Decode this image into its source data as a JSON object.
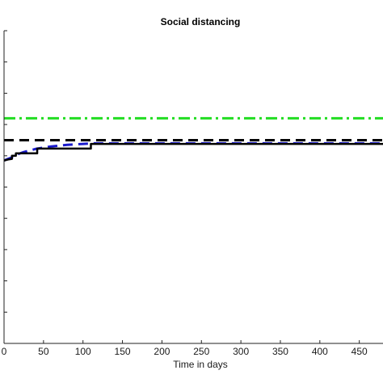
{
  "chart_data": {
    "type": "line",
    "title": "Social distancing",
    "xlabel": "Time in days",
    "ylabel": "",
    "xlim": [
      0,
      480
    ],
    "ylim": [
      0,
      1
    ],
    "x_ticks": [
      0,
      50,
      100,
      150,
      200,
      250,
      300,
      350,
      400,
      450
    ],
    "x_tick_labels": [
      "0",
      "50",
      "100",
      "150",
      "200",
      "250",
      "300",
      "350",
      "400",
      "450"
    ],
    "y_ticks": [
      0,
      0.1,
      0.2,
      0.3,
      0.4,
      0.5,
      0.6,
      0.7,
      0.8,
      0.9,
      1.0
    ],
    "grid": false,
    "legend": "none",
    "series": [
      {
        "style": "dash-dot",
        "color": "#22dd22",
        "x": [
          0,
          480
        ],
        "y": [
          0.72,
          0.72
        ]
      },
      {
        "style": "dashed",
        "color": "#000000",
        "x": [
          0,
          480
        ],
        "y": [
          0.65,
          0.65
        ]
      },
      {
        "style": "dashed",
        "color": "#1a1acc",
        "x": [
          0,
          5,
          10,
          15,
          25,
          40,
          60,
          80,
          100,
          115,
          130,
          480
        ],
        "y": [
          0.585,
          0.59,
          0.595,
          0.603,
          0.612,
          0.622,
          0.63,
          0.635,
          0.638,
          0.64,
          0.64,
          0.64
        ]
      },
      {
        "style": "solid",
        "color": "#000000",
        "x": [
          0,
          5,
          10,
          10,
          15,
          15,
          42,
          42,
          110,
          110,
          480
        ],
        "y": [
          0.585,
          0.588,
          0.59,
          0.6,
          0.6,
          0.608,
          0.608,
          0.623,
          0.623,
          0.638,
          0.638
        ]
      }
    ]
  }
}
